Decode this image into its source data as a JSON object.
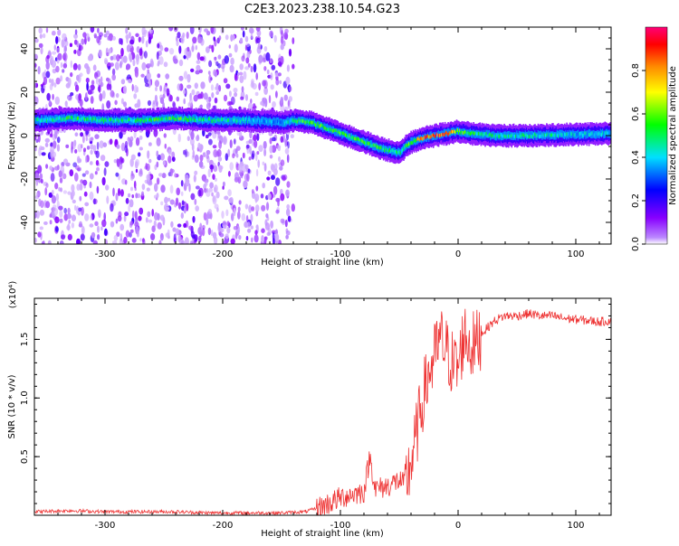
{
  "title": "C2E3.2023.238.10.54.G23",
  "colors": {
    "snr_line": "#ee3333",
    "axis": "#000000",
    "colorbar": [
      "#ffffff",
      "#8800ff",
      "#0000ff",
      "#00e0ff",
      "#00ff00",
      "#ffff00",
      "#ff8800",
      "#ff0000",
      "#ff0077"
    ]
  },
  "chart_data": [
    {
      "type": "heatmap",
      "title": "C2E3.2023.238.10.54.G23",
      "xlabel": "Height of straight line (km)",
      "ylabel": "Frequency (Hz)",
      "xlim": [
        -360,
        130
      ],
      "ylim": [
        -50,
        50
      ],
      "x_ticks": [
        "-300",
        "-200",
        "-100",
        "0",
        "100"
      ],
      "y_ticks": [
        "-40",
        "-20",
        "0",
        "20",
        "40"
      ],
      "colorbar": {
        "label": "Normalized spectral amplitude",
        "range": [
          0,
          1
        ],
        "ticks": [
          "0.0",
          "0.2",
          "0.4",
          "0.6",
          "0.8"
        ]
      },
      "noise_extent_x": [
        -360,
        -140
      ],
      "ridge": {
        "x": [
          -355,
          -330,
          -300,
          -270,
          -240,
          -210,
          -180,
          -150,
          -140,
          -125,
          -110,
          -95,
          -80,
          -65,
          -50,
          -45,
          -40,
          -30,
          -20,
          -10,
          0,
          10,
          30,
          60,
          100,
          130
        ],
        "frequency": [
          7,
          8,
          7,
          7,
          8,
          7,
          7,
          6,
          7,
          6,
          3,
          0,
          -3,
          -6,
          -8,
          -5,
          -3,
          -1,
          0,
          1,
          2,
          1,
          0,
          0,
          0.5,
          1
        ],
        "amplitude": [
          0.45,
          0.5,
          0.45,
          0.5,
          0.55,
          0.45,
          0.4,
          0.35,
          0.5,
          0.55,
          0.5,
          0.55,
          0.55,
          0.5,
          0.45,
          0.5,
          0.6,
          0.8,
          0.85,
          0.8,
          0.6,
          0.5,
          0.45,
          0.45,
          0.4,
          0.4
        ]
      }
    },
    {
      "type": "line",
      "xlabel": "Height of straight line (km)",
      "ylabel": "SNR (10 * v/v)",
      "y_multiplier": "(x10⁴)",
      "xlim": [
        -360,
        130
      ],
      "ylim": [
        0,
        1.85
      ],
      "x_ticks": [
        "-300",
        "-200",
        "-100",
        "0",
        "100"
      ],
      "y_ticks": [
        "0.5",
        "1.0",
        "1.5"
      ],
      "series": [
        {
          "x": [
            -360,
            -330,
            -300,
            -270,
            -240,
            -210,
            -180,
            -150,
            -130,
            -120,
            -110,
            -100,
            -90,
            -80,
            -75,
            -70,
            -60,
            -50,
            -45,
            -40,
            -35,
            -30,
            -25,
            -20,
            -15,
            -10,
            -5,
            0,
            5,
            10,
            15,
            20,
            25,
            30,
            35,
            40,
            50,
            60,
            70,
            80,
            90,
            100,
            110,
            120,
            130
          ],
          "values": [
            0.03,
            0.04,
            0.03,
            0.03,
            0.03,
            0.02,
            0.02,
            0.02,
            0.03,
            0.06,
            0.1,
            0.15,
            0.18,
            0.2,
            0.5,
            0.22,
            0.25,
            0.3,
            0.25,
            0.45,
            0.7,
            1.0,
            1.2,
            1.35,
            1.5,
            1.4,
            1.3,
            1.25,
            1.55,
            1.45,
            1.45,
            1.55,
            1.6,
            1.65,
            1.68,
            1.7,
            1.7,
            1.72,
            1.7,
            1.7,
            1.68,
            1.67,
            1.66,
            1.65,
            1.66
          ]
        }
      ]
    }
  ]
}
